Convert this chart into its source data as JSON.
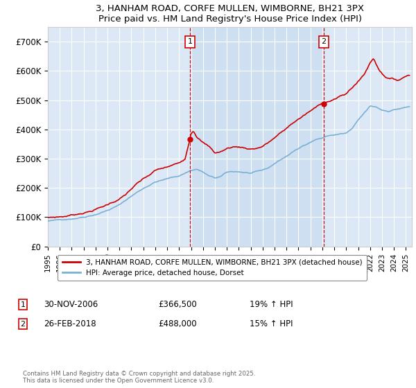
{
  "title": "3, HANHAM ROAD, CORFE MULLEN, WIMBORNE, BH21 3PX",
  "subtitle": "Price paid vs. HM Land Registry's House Price Index (HPI)",
  "ylabel_ticks": [
    "£0",
    "£100K",
    "£200K",
    "£300K",
    "£400K",
    "£500K",
    "£600K",
    "£700K"
  ],
  "ytick_values": [
    0,
    100000,
    200000,
    300000,
    400000,
    500000,
    600000,
    700000
  ],
  "ylim": [
    0,
    750000
  ],
  "xlim_start": 1995.0,
  "xlim_end": 2025.5,
  "hpi_color": "#7bafd4",
  "price_color": "#cc0000",
  "highlight_color": "#d0e4f5",
  "marker1_x": 2006.917,
  "marker1_y": 366500,
  "marker2_x": 2018.13,
  "marker2_y": 488000,
  "marker1_label": "30-NOV-2006",
  "marker2_label": "26-FEB-2018",
  "marker1_price": "£366,500",
  "marker2_price": "£488,000",
  "marker1_hpi": "19% ↑ HPI",
  "marker2_hpi": "15% ↑ HPI",
  "legend_line1": "3, HANHAM ROAD, CORFE MULLEN, WIMBORNE, BH21 3PX (detached house)",
  "legend_line2": "HPI: Average price, detached house, Dorset",
  "footer": "Contains HM Land Registry data © Crown copyright and database right 2025.\nThis data is licensed under the Open Government Licence v3.0.",
  "bg_color": "#dce8f5",
  "grid_color": "#ffffff",
  "xtick_years": [
    1995,
    1996,
    1997,
    1998,
    1999,
    2000,
    2001,
    2002,
    2003,
    2004,
    2005,
    2006,
    2007,
    2008,
    2009,
    2010,
    2011,
    2012,
    2013,
    2014,
    2015,
    2016,
    2017,
    2018,
    2019,
    2020,
    2021,
    2022,
    2023,
    2024,
    2025
  ]
}
